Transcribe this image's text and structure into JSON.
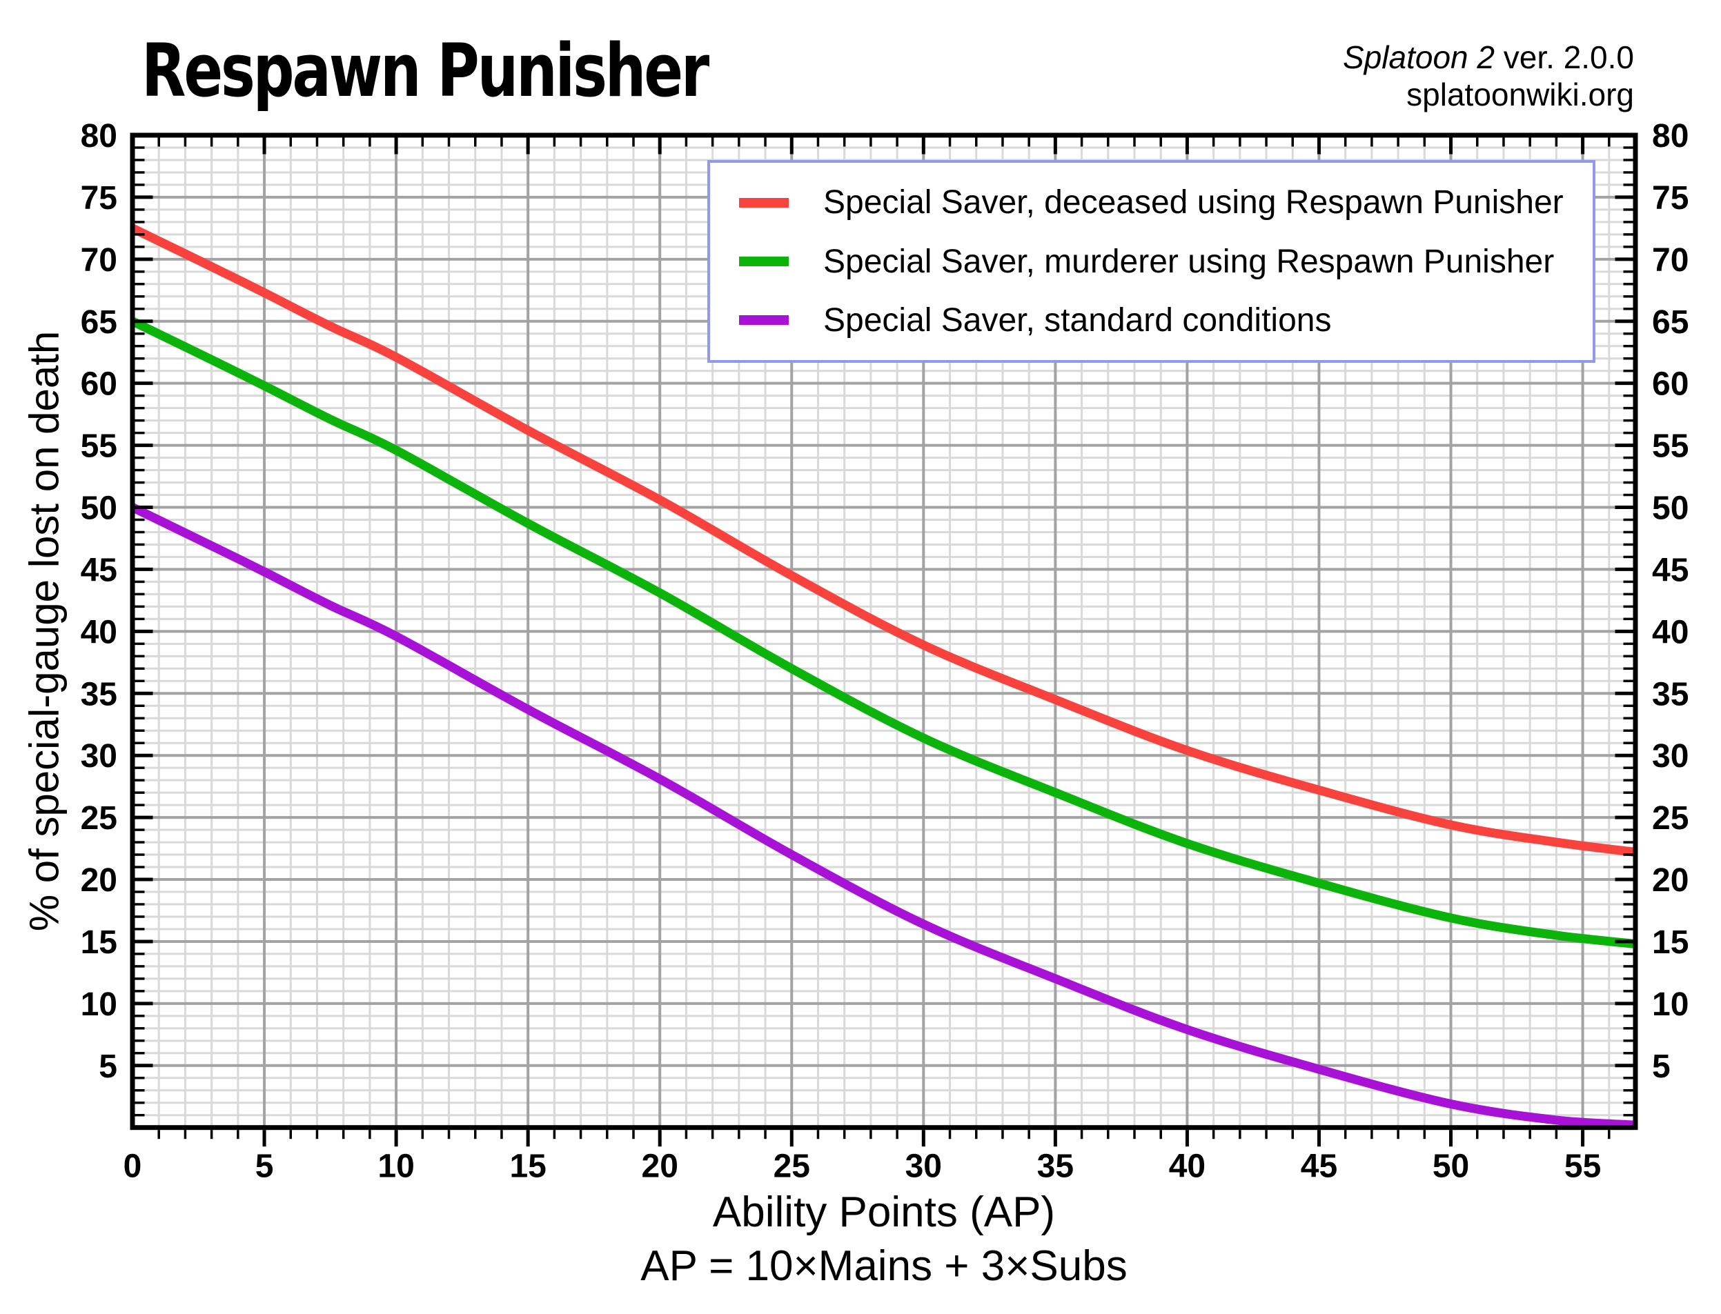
{
  "header": {
    "title": "Respawn Punisher",
    "version_italic": "Splatoon 2",
    "version_rest": " ver. 2.0.0",
    "source": "splatoonwiki.org"
  },
  "axes": {
    "y_label": "% of special-gauge lost on death",
    "x_label": "Ability Points (AP)",
    "x_sublabel": "AP = 10×Mains + 3×Subs"
  },
  "legend": {
    "border_color": "#8f9aef",
    "items": [
      {
        "label": "Special Saver, deceased using Respawn Punisher",
        "color": "#f8423e"
      },
      {
        "label": "Special Saver, murderer using Respawn Punisher",
        "color": "#0bb30b"
      },
      {
        "label": "Special Saver, standard conditions",
        "color": "#a712d6"
      }
    ]
  },
  "chart_data": {
    "type": "line",
    "title": "Respawn Punisher",
    "xlabel": "Ability Points (AP)",
    "ylabel": "% of special-gauge lost on death",
    "xlim": [
      0,
      57
    ],
    "ylim": [
      0,
      80
    ],
    "x_tick_step": 5,
    "y_tick_step": 5,
    "minor_tick_step": 1,
    "x_label_max": 55,
    "y_label_max": 80,
    "grid": {
      "minor_color": "#d9d9d9",
      "major_color": "#a3a3a3",
      "frame_color": "#000000"
    },
    "legend_position": "top-right",
    "x": [
      0,
      3,
      5,
      7.5,
      10,
      15,
      20,
      25,
      30,
      35,
      40,
      45,
      50,
      54,
      57
    ],
    "series": [
      {
        "name": "Special Saver, deceased using Respawn Punisher",
        "color": "#f8423e",
        "values": [
          72.5,
          69.4,
          67.3,
          64.6,
          62.1,
          56.2,
          50.6,
          44.5,
          38.9,
          34.5,
          30.4,
          27.2,
          24.4,
          23.0,
          22.2
        ]
      },
      {
        "name": "Special Saver, murderer using Respawn Punisher",
        "color": "#0bb30b",
        "values": [
          65.0,
          61.9,
          59.8,
          57.1,
          54.6,
          48.7,
          43.1,
          37.0,
          31.4,
          27.0,
          22.9,
          19.7,
          16.9,
          15.5,
          14.8
        ]
      },
      {
        "name": "Special Saver, standard conditions",
        "color": "#a712d6",
        "values": [
          50.0,
          46.9,
          44.8,
          42.1,
          39.6,
          33.7,
          28.1,
          22.0,
          16.4,
          12.0,
          7.9,
          4.7,
          1.9,
          0.6,
          0.2
        ]
      }
    ]
  }
}
